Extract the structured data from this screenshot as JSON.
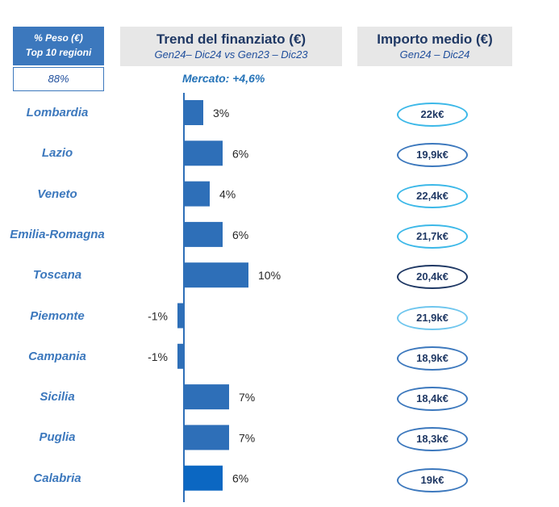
{
  "peso": {
    "line1": "% Peso (€)",
    "line2": "Top 10 regioni",
    "value": "88%"
  },
  "trend_header": {
    "title": "Trend del finanziato (€)",
    "subtitle": "Gen24– Dic24 vs Gen23 – Dic23"
  },
  "importo_header": {
    "title": "Importo medio (€)",
    "subtitle": "Gen24 – Dic24"
  },
  "mercato_label": "Mercato: +4,6%",
  "chart_data": {
    "type": "bar",
    "orientation": "horizontal",
    "categories": [
      "Lombardia",
      "Lazio",
      "Veneto",
      "Emilia-Romagna",
      "Toscana",
      "Piemonte",
      "Campania",
      "Sicilia",
      "Puglia",
      "Calabria"
    ],
    "values": [
      3,
      6,
      4,
      6,
      10,
      -1,
      -1,
      7,
      7,
      6
    ],
    "value_labels": [
      "3%",
      "6%",
      "4%",
      "6%",
      "10%",
      "-1%",
      "-1%",
      "7%",
      "7%",
      "6%"
    ],
    "bar_colors": [
      "#2e6fb8",
      "#2e6fb8",
      "#2e6fb8",
      "#2e6fb8",
      "#2e6fb8",
      "#2e6fb8",
      "#2e6fb8",
      "#2e6fb8",
      "#2e6fb8",
      "#0b67c2"
    ],
    "title": "Trend del finanziato (€)",
    "subtitle": "Gen24– Dic24 vs Gen23 – Dic23",
    "xlabel": "",
    "ylabel": "",
    "annotation": "Mercato: +4,6%"
  },
  "importo_medio": [
    {
      "value": "22k€",
      "border": "#3cb8e8"
    },
    {
      "value": "19,9k€",
      "border": "#3c78bd"
    },
    {
      "value": "22,4k€",
      "border": "#3cb8e8"
    },
    {
      "value": "21,7k€",
      "border": "#3cb8e8"
    },
    {
      "value": "20,4k€",
      "border": "#1f3864"
    },
    {
      "value": "21,9k€",
      "border": "#6fc6ee"
    },
    {
      "value": "18,9k€",
      "border": "#3c78bd"
    },
    {
      "value": "18,4k€",
      "border": "#3c78bd"
    },
    {
      "value": "18,3k€",
      "border": "#3c78bd"
    },
    {
      "value": "19k€",
      "border": "#3c78bd"
    }
  ]
}
